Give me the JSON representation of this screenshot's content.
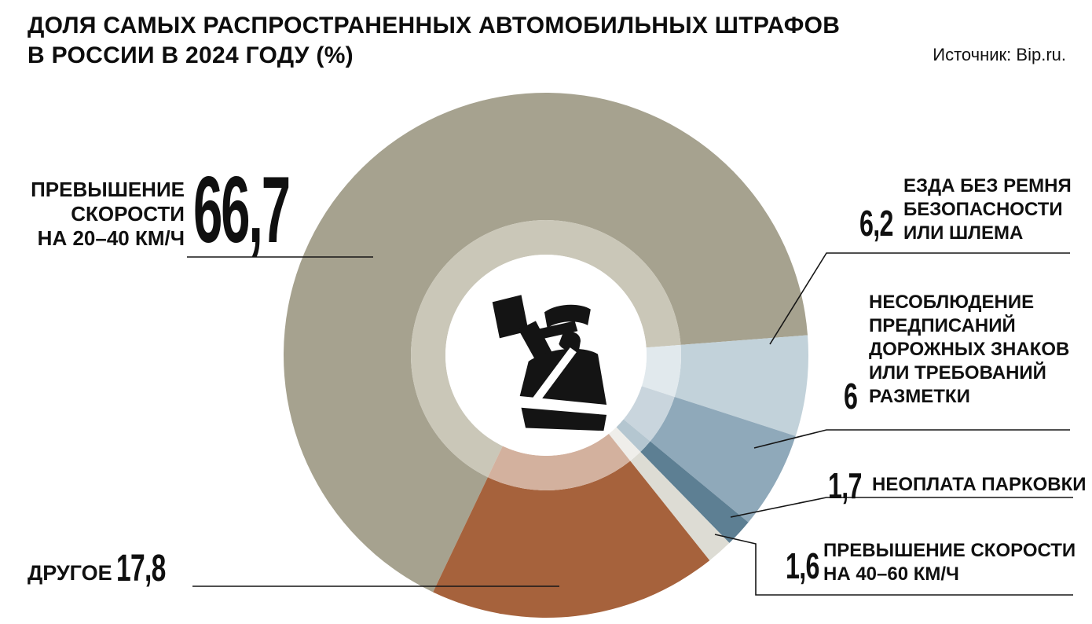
{
  "header": {
    "title_line1": "ДОЛЯ САМЫХ РАСПРОСТРАНЕННЫХ АВТОМОБИЛЬНЫХ ШТРАФОВ",
    "title_line2": "В РОССИИ В 2024 ГОДУ (%)",
    "source": "Источник: Bip.ru."
  },
  "chart_data": {
    "type": "pie",
    "title": "Доля самых распространенных автомобильных штрафов в России в 2024 году (%)",
    "unit": "%",
    "donut": true,
    "legend_position": "callouts",
    "start_angle_deg": 205.5,
    "direction": "clockwise",
    "center_icon": "traffic-police-officer",
    "slices": [
      {
        "key": "speeding-20-40",
        "label": "Превышение скорости на 20–40 км/ч",
        "value": 66.7,
        "display_value": "66,7",
        "color": "#a6a28f",
        "inner_color": "#cac7b8"
      },
      {
        "key": "no-seatbelt-or-helmet",
        "label": "Езда без ремня безопасности или шлема",
        "value": 6.2,
        "display_value": "6,2",
        "color": "#c2d2da",
        "inner_color": "#e1e9ed"
      },
      {
        "key": "road-signs-markings",
        "label": "Несоблюдение предписаний дорожных знаков или требований разметки",
        "value": 6,
        "display_value": "6",
        "color": "#8fa9ba",
        "inner_color": "#c9d5dd"
      },
      {
        "key": "unpaid-parking",
        "label": "Неоплата парковки",
        "value": 1.7,
        "display_value": "1,7",
        "color": "#5d7f93",
        "inner_color": "#b4c6d0"
      },
      {
        "key": "speeding-40-60",
        "label": "Превышение скорости на 40–60 км/ч",
        "value": 1.6,
        "display_value": "1,6",
        "color": "#dddcd4",
        "inner_color": "#efeeea"
      },
      {
        "key": "other",
        "label": "Другое",
        "value": 17.8,
        "display_value": "17,8",
        "color": "#a6623c",
        "inner_color": "#d3b19e"
      }
    ]
  },
  "labels": {
    "speed_20_40": {
      "value": "66,7",
      "lines": [
        "ПРЕВЫШЕНИЕ",
        "СКОРОСТИ",
        "НА 20–40 КМ/Ч"
      ]
    },
    "seatbelt": {
      "value": "6,2",
      "lines": [
        "ЕЗДА БЕЗ РЕМНЯ",
        "БЕЗОПАСНОСТИ",
        "ИЛИ ШЛЕМА"
      ]
    },
    "signs": {
      "value": "6",
      "lines": [
        "НЕСОБЛЮДЕНИЕ",
        "ПРЕДПИСАНИЙ",
        "ДОРОЖНЫХ ЗНАКОВ",
        "ИЛИ ТРЕБОВАНИЙ",
        "РАЗМЕТКИ"
      ]
    },
    "parking": {
      "value": "1,7",
      "label": "НЕОПЛАТА ПАРКОВКИ"
    },
    "speed_40_60": {
      "value": "1,6",
      "lines": [
        "ПРЕВЫШЕНИЕ СКОРОСТИ",
        "НА 40–60 КМ/Ч"
      ]
    },
    "other": {
      "value": "17,8",
      "label": "ДРУГОЕ"
    }
  }
}
